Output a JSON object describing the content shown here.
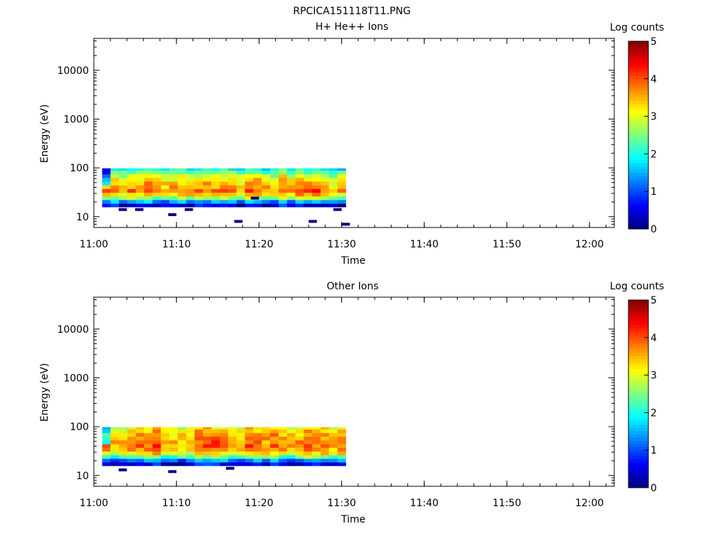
{
  "figure_title": "RPCICA151118T11.PNG",
  "colors": {
    "colormap": [
      "#00007f",
      "#0000ff",
      "#007fff",
      "#00ffff",
      "#7fff7f",
      "#ffff00",
      "#ff7f00",
      "#ff0000",
      "#7f0000"
    ],
    "axes": "#000000",
    "background": "#ffffff"
  },
  "chart_data": [
    {
      "type": "heatmap",
      "title": "H+ He++ Ions",
      "xlabel": "Time",
      "ylabel": "Energy (eV)",
      "x_ticks": [
        "11:00",
        "11:10",
        "11:20",
        "11:30",
        "11:40",
        "11:50",
        "12:00"
      ],
      "xlim": [
        "11:00",
        "12:03"
      ],
      "y_scale": "log",
      "y_ticks": [
        "10",
        "100",
        "1000",
        "10000"
      ],
      "ylim": [
        6,
        45000
      ],
      "colorbar": {
        "label": "Log counts",
        "ticks": [
          "0",
          "1",
          "2",
          "3",
          "4",
          "5"
        ],
        "range": [
          0,
          5
        ]
      },
      "data_time_range": [
        "11:01",
        "11:30"
      ],
      "energy_range_eV": [
        16,
        95
      ],
      "profile_log_counts": [
        {
          "energy_eV": 95,
          "log_counts": 2.0
        },
        {
          "energy_eV": 80,
          "log_counts": 2.4
        },
        {
          "energy_eV": 68,
          "log_counts": 2.9
        },
        {
          "energy_eV": 57,
          "log_counts": 3.2
        },
        {
          "energy_eV": 48,
          "log_counts": 3.4
        },
        {
          "energy_eV": 40,
          "log_counts": 3.6
        },
        {
          "energy_eV": 34,
          "log_counts": 3.8
        },
        {
          "energy_eV": 28,
          "log_counts": 3.4
        },
        {
          "energy_eV": 24,
          "log_counts": 2.6
        },
        {
          "energy_eV": 20,
          "log_counts": 1.4
        },
        {
          "energy_eV": 17,
          "log_counts": 0.5
        }
      ],
      "isolated_low_counts": [
        {
          "time": "11:03",
          "energy_eV": 14
        },
        {
          "time": "11:05",
          "energy_eV": 14
        },
        {
          "time": "11:09",
          "energy_eV": 11
        },
        {
          "time": "11:11",
          "energy_eV": 14
        },
        {
          "time": "11:17",
          "energy_eV": 8
        },
        {
          "time": "11:19",
          "energy_eV": 24
        },
        {
          "time": "11:26",
          "energy_eV": 8
        },
        {
          "time": "11:29",
          "energy_eV": 14
        },
        {
          "time": "11:30",
          "energy_eV": 7
        }
      ]
    },
    {
      "type": "heatmap",
      "title": "Other Ions",
      "xlabel": "Time",
      "ylabel": "Energy (eV)",
      "x_ticks": [
        "11:00",
        "11:10",
        "11:20",
        "11:30",
        "11:40",
        "11:50",
        "12:00"
      ],
      "xlim": [
        "11:00",
        "12:03"
      ],
      "y_scale": "log",
      "y_ticks": [
        "10",
        "100",
        "1000",
        "10000"
      ],
      "ylim": [
        6,
        45000
      ],
      "colorbar": {
        "label": "Log counts",
        "ticks": [
          "0",
          "1",
          "2",
          "3",
          "4",
          "5"
        ],
        "range": [
          0,
          5
        ]
      },
      "data_time_range": [
        "11:01",
        "11:30"
      ],
      "energy_range_eV": [
        16,
        95
      ],
      "profile_log_counts": [
        {
          "energy_eV": 95,
          "log_counts": 3.1
        },
        {
          "energy_eV": 80,
          "log_counts": 3.3
        },
        {
          "energy_eV": 68,
          "log_counts": 3.5
        },
        {
          "energy_eV": 57,
          "log_counts": 3.6
        },
        {
          "energy_eV": 48,
          "log_counts": 3.7
        },
        {
          "energy_eV": 40,
          "log_counts": 3.8
        },
        {
          "energy_eV": 34,
          "log_counts": 3.6
        },
        {
          "energy_eV": 28,
          "log_counts": 3.2
        },
        {
          "energy_eV": 24,
          "log_counts": 2.3
        },
        {
          "energy_eV": 20,
          "log_counts": 1.3
        },
        {
          "energy_eV": 17,
          "log_counts": 0.5
        }
      ],
      "isolated_low_counts": [
        {
          "time": "11:03",
          "energy_eV": 13
        },
        {
          "time": "11:09",
          "energy_eV": 12
        },
        {
          "time": "11:16",
          "energy_eV": 14
        }
      ]
    }
  ]
}
